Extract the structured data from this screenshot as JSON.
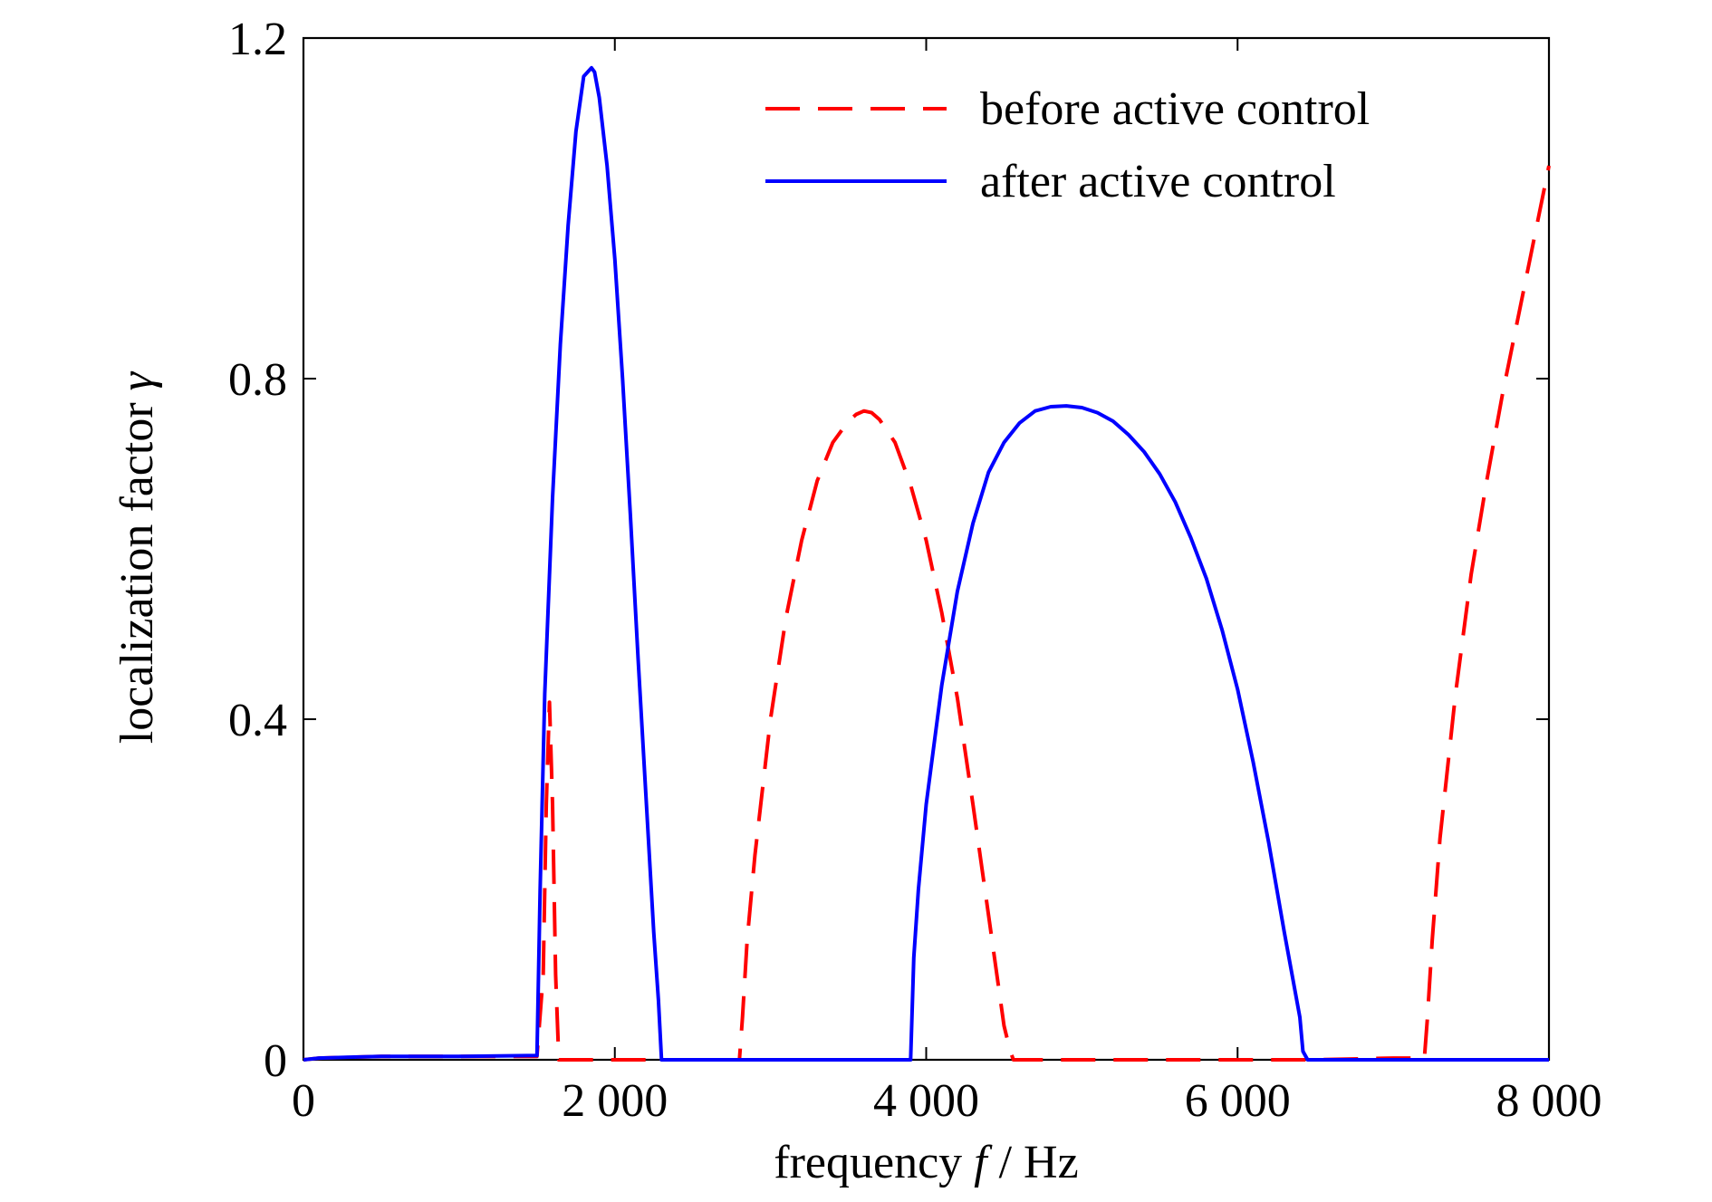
{
  "chart_data": {
    "type": "line",
    "title": "",
    "xlabel_parts": [
      "frequency ",
      "f",
      " / Hz"
    ],
    "ylabel_parts": [
      "localization factor ",
      "γ"
    ],
    "xlim": [
      0,
      8000
    ],
    "ylim": [
      0,
      1.2
    ],
    "x_ticks": [
      0,
      2000,
      4000,
      6000,
      8000
    ],
    "x_tick_labels": [
      "0",
      "2 000",
      "4 000",
      "6 000",
      "8 000"
    ],
    "y_ticks": [
      0,
      0.4,
      0.8,
      1.2
    ],
    "y_tick_labels": [
      "0",
      "0.4",
      "0.8",
      "1.2"
    ],
    "grid": false,
    "legend_position": "top-right",
    "series": [
      {
        "name": "before active control",
        "color": "#ff0000",
        "style": "dashed",
        "x": [
          0,
          100,
          500,
          1000,
          1500,
          1540,
          1560,
          1580,
          1600,
          1620,
          1640,
          2000,
          2500,
          2800,
          2820,
          2850,
          2900,
          3000,
          3100,
          3200,
          3300,
          3400,
          3500,
          3550,
          3600,
          3650,
          3700,
          3800,
          3900,
          4000,
          4100,
          4200,
          4300,
          4400,
          4500,
          4540,
          4560,
          4580,
          5000,
          5500,
          6000,
          6500,
          7000,
          7200,
          7220,
          7250,
          7300,
          7400,
          7500,
          7600,
          7700,
          7800,
          7900,
          8000
        ],
        "y": [
          0,
          0.002,
          0.004,
          0.004,
          0.004,
          0.1,
          0.3,
          0.42,
          0.3,
          0.1,
          0,
          0,
          0,
          0,
          0.05,
          0.14,
          0.24,
          0.4,
          0.52,
          0.61,
          0.68,
          0.725,
          0.75,
          0.758,
          0.762,
          0.76,
          0.752,
          0.725,
          0.675,
          0.61,
          0.525,
          0.425,
          0.3,
          0.17,
          0.04,
          0.01,
          0,
          0,
          0,
          0,
          0,
          0,
          0.002,
          0.002,
          0.05,
          0.14,
          0.26,
          0.43,
          0.57,
          0.68,
          0.78,
          0.87,
          0.96,
          1.05
        ]
      },
      {
        "name": "after active control",
        "color": "#0000ff",
        "style": "solid",
        "x": [
          0,
          100,
          500,
          1000,
          1500,
          1520,
          1550,
          1600,
          1650,
          1700,
          1750,
          1800,
          1850,
          1870,
          1900,
          1950,
          2000,
          2050,
          2100,
          2150,
          2200,
          2250,
          2280,
          2300,
          2500,
          3000,
          3500,
          3900,
          3920,
          3950,
          4000,
          4100,
          4200,
          4300,
          4400,
          4500,
          4600,
          4700,
          4800,
          4900,
          5000,
          5100,
          5200,
          5300,
          5400,
          5500,
          5600,
          5700,
          5800,
          5900,
          6000,
          6100,
          6200,
          6300,
          6400,
          6420,
          6450,
          7000,
          7500,
          8000
        ],
        "y": [
          0,
          0.002,
          0.004,
          0.004,
          0.005,
          0.2,
          0.43,
          0.66,
          0.84,
          0.98,
          1.09,
          1.155,
          1.165,
          1.16,
          1.13,
          1.05,
          0.94,
          0.8,
          0.64,
          0.47,
          0.31,
          0.15,
          0.07,
          0,
          0,
          0,
          0,
          0,
          0.12,
          0.2,
          0.3,
          0.44,
          0.55,
          0.63,
          0.69,
          0.725,
          0.748,
          0.762,
          0.767,
          0.768,
          0.766,
          0.76,
          0.75,
          0.734,
          0.714,
          0.688,
          0.655,
          0.613,
          0.565,
          0.505,
          0.435,
          0.35,
          0.255,
          0.15,
          0.05,
          0.01,
          0,
          0,
          0,
          0
        ]
      }
    ]
  }
}
